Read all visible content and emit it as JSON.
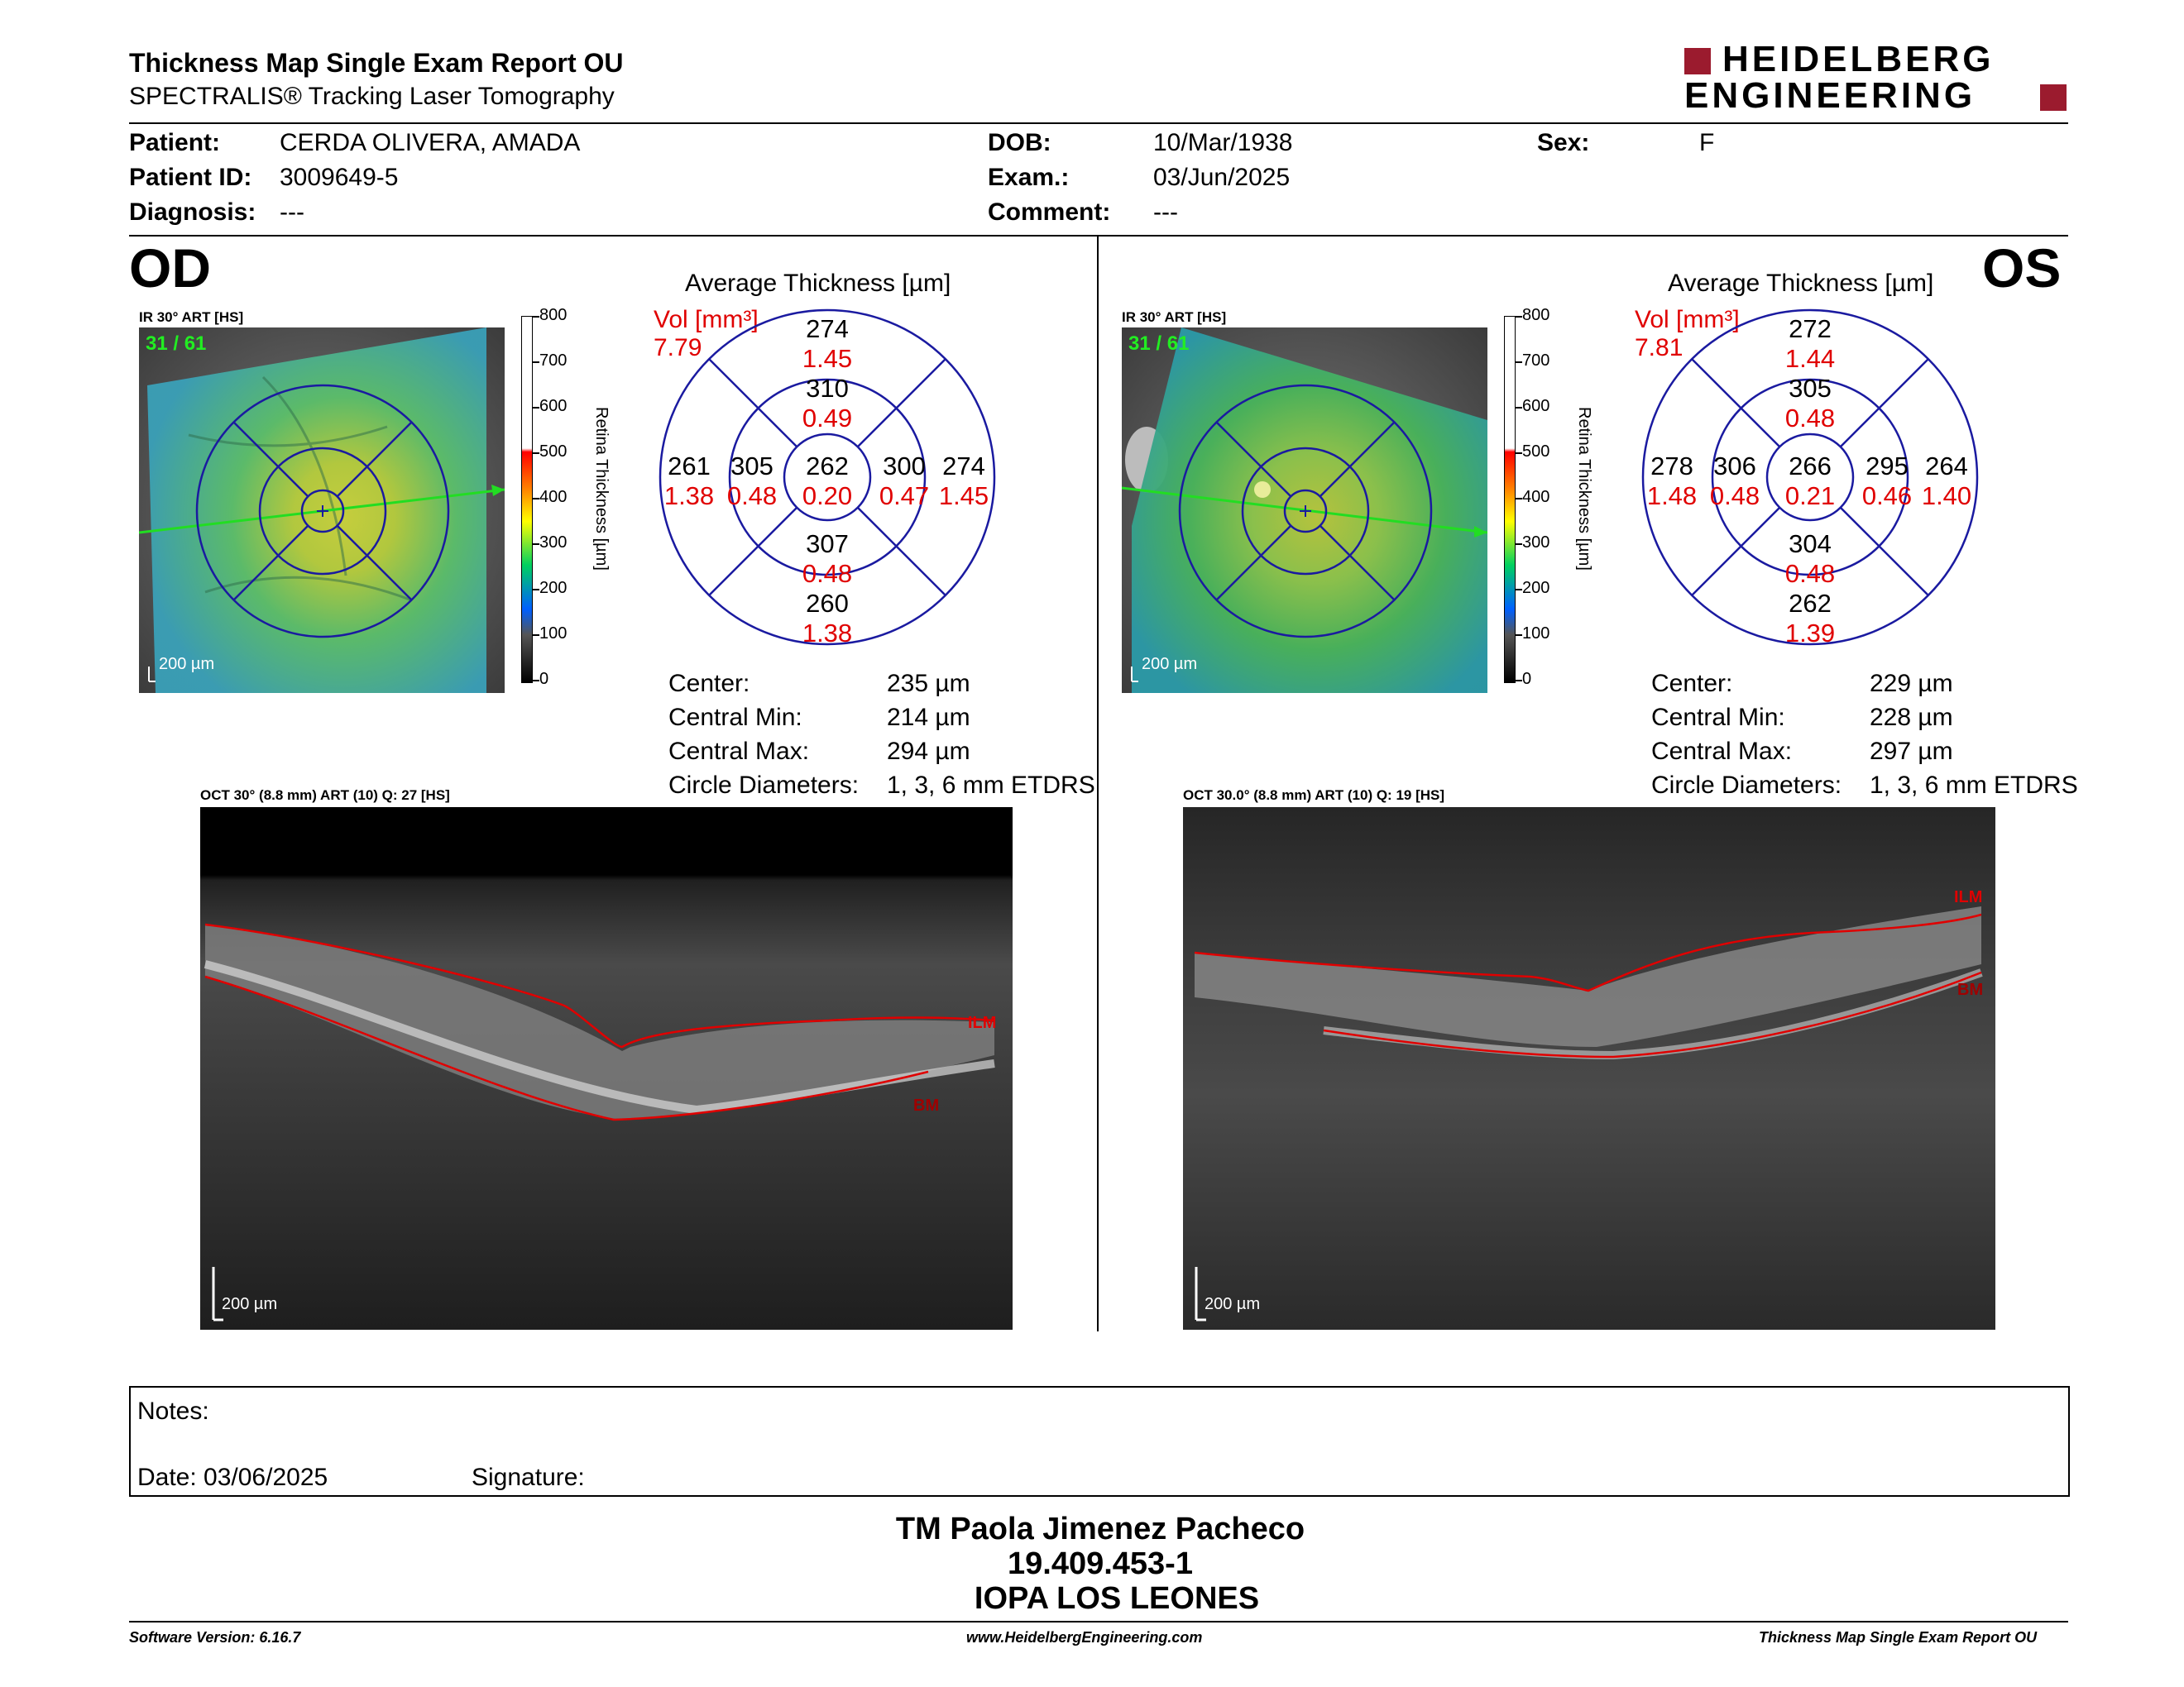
{
  "header": {
    "title": "Thickness Map Single Exam Report OU",
    "subtitle": "SPECTRALIS® Tracking Laser Tomography",
    "logo_line1": "HEIDELBERG",
    "logo_line2": "ENGINEERING"
  },
  "patient": {
    "patient_label": "Patient:",
    "patient_value": "CERDA OLIVERA, AMADA",
    "id_label": "Patient ID:",
    "id_value": "3009649-5",
    "diagnosis_label": "Diagnosis:",
    "diagnosis_value": "---",
    "dob_label": "DOB:",
    "dob_value": "10/Mar/1938",
    "exam_label": "Exam.:",
    "exam_value": "03/Jun/2025",
    "comment_label": "Comment:",
    "comment_value": "---",
    "sex_label": "Sex:",
    "sex_value": "F"
  },
  "scale": {
    "ticks": [
      "800",
      "700",
      "600",
      "500",
      "400",
      "300",
      "200",
      "100",
      "0"
    ],
    "label": "Retina Thickness [µm]"
  },
  "od": {
    "eye": "OD",
    "ir_label": "IR 30° ART [HS]",
    "frames": "31 / 61",
    "scalebar": "200 µm",
    "avg_title": "Average Thickness [µm]",
    "vol_label": "Vol [mm³]",
    "vol_total": "7.79",
    "sectors": {
      "outer_sup": "274",
      "outer_sup_vol": "1.45",
      "inner_sup": "310",
      "inner_sup_vol": "0.49",
      "outer_temp": "261",
      "outer_temp_vol": "1.38",
      "inner_temp": "305",
      "inner_temp_vol": "0.48",
      "center": "262",
      "center_vol": "0.20",
      "inner_nas": "300",
      "inner_nas_vol": "0.47",
      "outer_nas": "274",
      "outer_nas_vol": "1.45",
      "inner_inf": "307",
      "inner_inf_vol": "0.48",
      "outer_inf": "260",
      "outer_inf_vol": "1.38"
    },
    "stats": {
      "center_label": "Center:",
      "center_value": "235 µm",
      "min_label": "Central Min:",
      "min_value": "214 µm",
      "max_label": "Central Max:",
      "max_value": "294 µm",
      "diam_label": "Circle Diameters:",
      "diam_value": "1, 3, 6 mm ETDRS"
    },
    "oct_label": "OCT 30° (8.8 mm) ART (10) Q: 27 [HS]",
    "ilm": "ILM",
    "bm": "BM",
    "oct_scalebar": "200 µm"
  },
  "os": {
    "eye": "OS",
    "ir_label": "IR 30° ART [HS]",
    "frames": "31 / 61",
    "scalebar": "200 µm",
    "avg_title": "Average Thickness [µm]",
    "vol_label": "Vol [mm³]",
    "vol_total": "7.81",
    "sectors": {
      "outer_sup": "272",
      "outer_sup_vol": "1.44",
      "inner_sup": "305",
      "inner_sup_vol": "0.48",
      "outer_temp": "278",
      "outer_temp_vol": "1.48",
      "inner_temp": "306",
      "inner_temp_vol": "0.48",
      "center": "266",
      "center_vol": "0.21",
      "inner_nas": "295",
      "inner_nas_vol": "0.46",
      "outer_nas": "264",
      "outer_nas_vol": "1.40",
      "inner_inf": "304",
      "inner_inf_vol": "0.48",
      "outer_inf": "262",
      "outer_inf_vol": "1.39"
    },
    "stats": {
      "center_label": "Center:",
      "center_value": "229 µm",
      "min_label": "Central Min:",
      "min_value": "228 µm",
      "max_label": "Central Max:",
      "max_value": "297 µm",
      "diam_label": "Circle Diameters:",
      "diam_value": "1, 3, 6 mm ETDRS"
    },
    "oct_label": "OCT 30.0° (8.8 mm) ART (10) Q: 19 [HS]",
    "ilm": "ILM",
    "bm": "BM",
    "oct_scalebar": "200 µm"
  },
  "notes": {
    "notes_label": "Notes:",
    "date_label": "Date: 03/06/2025",
    "signature_label": "Signature:"
  },
  "signature_block": {
    "name": "TM Paola Jimenez Pacheco",
    "rut": "19.409.453-1",
    "institution": "IOPA LOS LEONES"
  },
  "footer": {
    "software": "Software Version: 6.16.7",
    "website": "www.HeidelbergEngineering.com",
    "report": "Thickness Map Single Exam Report OU"
  },
  "colors": {
    "logo_red": "#9b1b2e",
    "value_red": "#e00000",
    "grid_blue": "#1a1aa0"
  }
}
